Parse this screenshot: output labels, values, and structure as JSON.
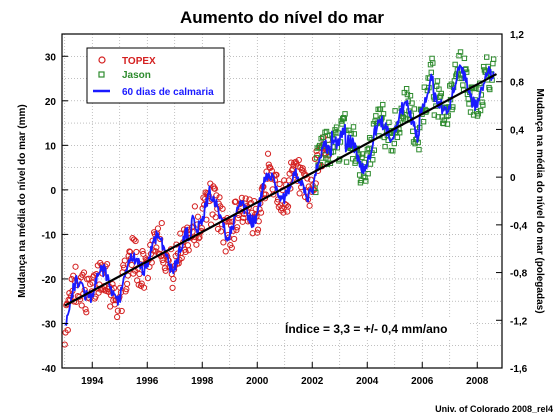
{
  "chart_data": {
    "type": "scatter",
    "title": "Aumento do nível do mar",
    "ylabel_left": "Mudança na média do nível do mar (mm)",
    "ylabel_right": "Mudança na média do nível do mar (polegadas)",
    "xlabel": "",
    "xlim": [
      1992.9,
      2008.9
    ],
    "ylim": [
      -40,
      35
    ],
    "y2lim": [
      -1.6,
      1.2
    ],
    "x_ticks": [
      1994,
      1996,
      1998,
      2000,
      2002,
      2004,
      2006,
      2008
    ],
    "y_ticks": [
      -40,
      -30,
      -20,
      -10,
      0,
      10,
      20,
      30
    ],
    "y2_ticks": [
      "-1,6",
      "-1,2",
      "-0,8",
      "-0,4",
      "0",
      "0,4",
      "0,8",
      "1,2"
    ],
    "grid": true,
    "legend_position": "top-left",
    "series": [
      {
        "name": "TOPEX",
        "color": "#d42020",
        "marker": "circle",
        "x_range": [
          1993.0,
          2002.6
        ],
        "step": 0.028,
        "points": 344
      },
      {
        "name": "Jason",
        "color": "#2e8b2e",
        "marker": "square",
        "x_range": [
          2002.1,
          2008.6
        ],
        "step": 0.028,
        "points": 233
      },
      {
        "name": "60 dias de calmaria",
        "color": "#1a1aff",
        "marker": "line",
        "x_range": [
          1993.0,
          2008.6
        ],
        "step": 0.028
      }
    ],
    "trend": {
      "color": "#000000",
      "x": [
        1993.0,
        2008.7
      ],
      "y": [
        -26.0,
        26.0
      ]
    },
    "annotation": "Índice = 3,3 = +/- 0,4 mm/ano",
    "credit": "Univ. of Colorado 2008_rel4"
  }
}
